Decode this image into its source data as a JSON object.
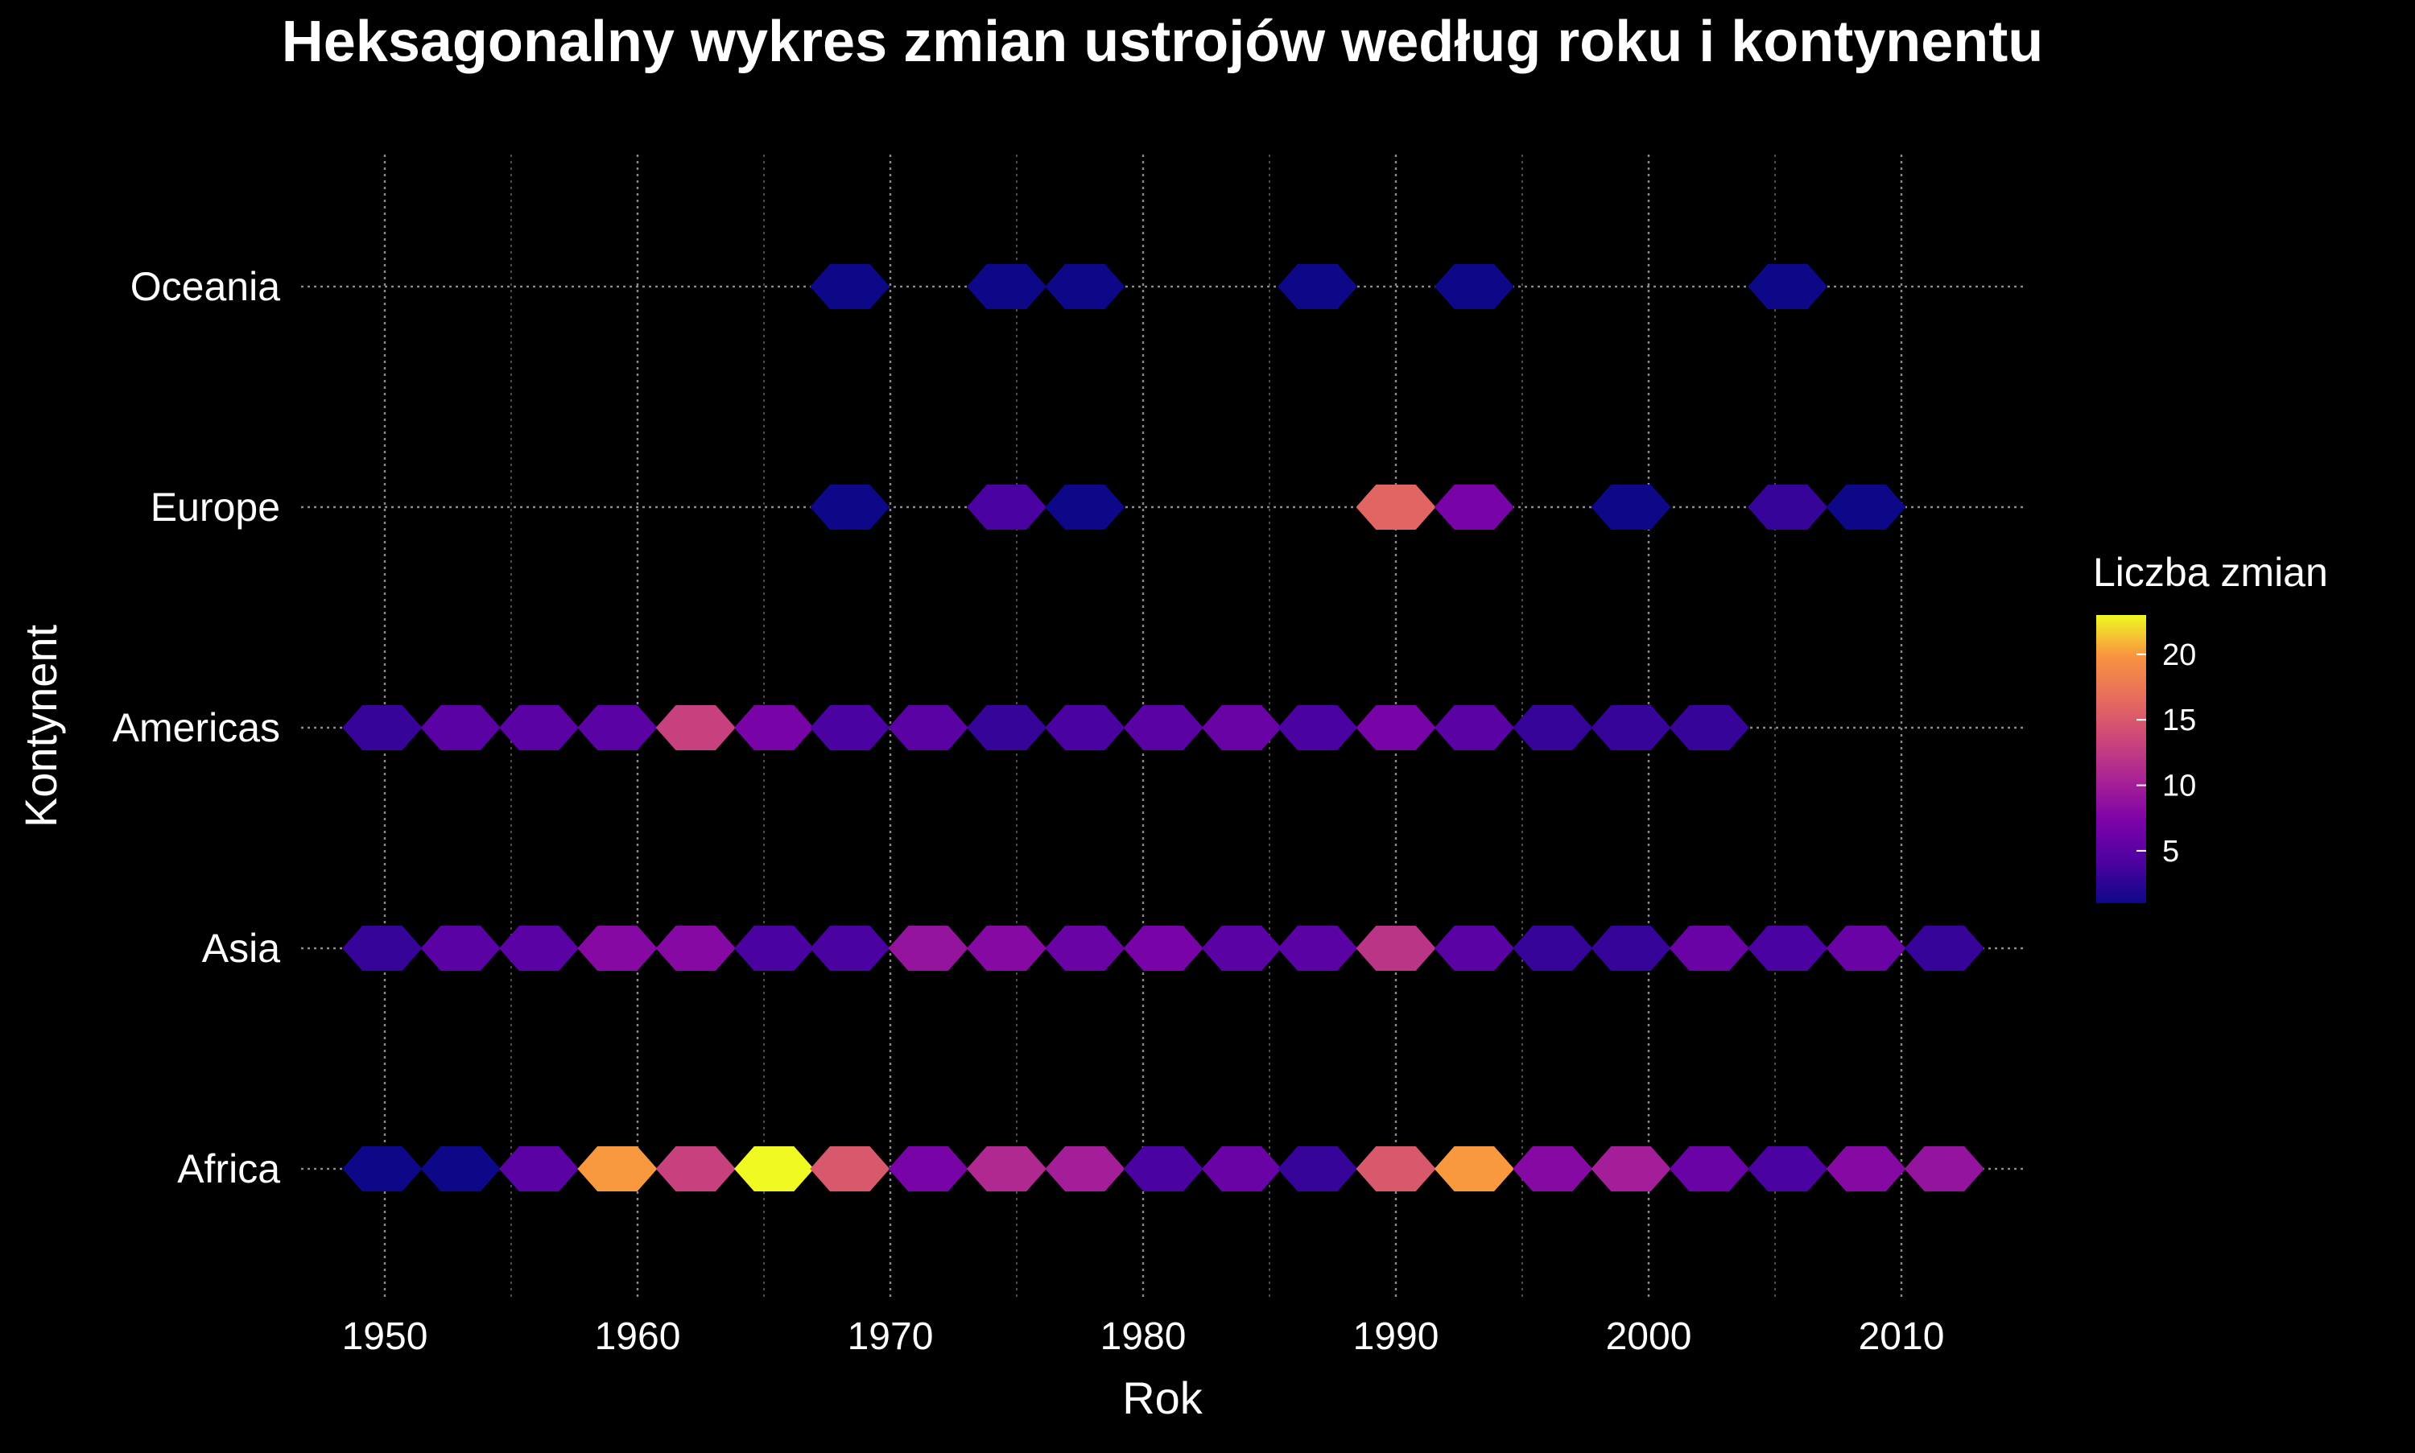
{
  "chart_data": {
    "type": "heatmap",
    "title": "Heksagonalny wykres zmian ustrojów według roku i kontynentu",
    "xlabel": "Rok",
    "ylabel": "Kontynent",
    "xlim": [
      1946,
      2015
    ],
    "categories_y": [
      "Africa",
      "Asia",
      "Americas",
      "Europe",
      "Oceania"
    ],
    "x_ticks": [
      1950,
      1960,
      1970,
      1980,
      1990,
      2000,
      2010
    ],
    "x_tick_labels": [
      "1950",
      "1960",
      "1970",
      "1980",
      "1990",
      "2000",
      "2010"
    ],
    "grid": true,
    "legend": {
      "title": "Liczba zmian",
      "position": "right",
      "min": 1,
      "max": 23,
      "ticks": [
        5,
        10,
        15,
        20
      ],
      "tick_labels": [
        "5",
        "10",
        "15",
        "20"
      ]
    },
    "colorscale": "plasma",
    "series": [
      {
        "name": "Oceania",
        "points": [
          {
            "x": 1968.4,
            "count": 1
          },
          {
            "x": 1974.6,
            "count": 1
          },
          {
            "x": 1977.7,
            "count": 1
          },
          {
            "x": 1986.9,
            "count": 1
          },
          {
            "x": 1993.1,
            "count": 1
          },
          {
            "x": 2005.5,
            "count": 1
          }
        ]
      },
      {
        "name": "Europe",
        "points": [
          {
            "x": 1968.4,
            "count": 1
          },
          {
            "x": 1974.6,
            "count": 4
          },
          {
            "x": 1977.7,
            "count": 1
          },
          {
            "x": 1990.0,
            "count": 16
          },
          {
            "x": 1993.1,
            "count": 7
          },
          {
            "x": 1999.3,
            "count": 1
          },
          {
            "x": 2005.5,
            "count": 3
          },
          {
            "x": 2008.6,
            "count": 1
          }
        ]
      },
      {
        "name": "Americas",
        "points": [
          {
            "x": 1949.9,
            "count": 3
          },
          {
            "x": 1953.0,
            "count": 5
          },
          {
            "x": 1956.1,
            "count": 5
          },
          {
            "x": 1959.2,
            "count": 5
          },
          {
            "x": 1962.3,
            "count": 13
          },
          {
            "x": 1965.4,
            "count": 7
          },
          {
            "x": 1968.4,
            "count": 4
          },
          {
            "x": 1971.5,
            "count": 5
          },
          {
            "x": 1974.6,
            "count": 3
          },
          {
            "x": 1977.7,
            "count": 4
          },
          {
            "x": 1980.8,
            "count": 5
          },
          {
            "x": 1983.9,
            "count": 6
          },
          {
            "x": 1986.9,
            "count": 4
          },
          {
            "x": 1990.0,
            "count": 7
          },
          {
            "x": 1993.1,
            "count": 5
          },
          {
            "x": 1996.2,
            "count": 3
          },
          {
            "x": 1999.3,
            "count": 3
          },
          {
            "x": 2002.4,
            "count": 3
          }
        ]
      },
      {
        "name": "Asia",
        "points": [
          {
            "x": 1949.9,
            "count": 3
          },
          {
            "x": 1953.0,
            "count": 5
          },
          {
            "x": 1956.1,
            "count": 5
          },
          {
            "x": 1959.2,
            "count": 8
          },
          {
            "x": 1962.3,
            "count": 8
          },
          {
            "x": 1965.4,
            "count": 4
          },
          {
            "x": 1968.4,
            "count": 4
          },
          {
            "x": 1971.5,
            "count": 9
          },
          {
            "x": 1974.6,
            "count": 8
          },
          {
            "x": 1977.7,
            "count": 6
          },
          {
            "x": 1980.8,
            "count": 7
          },
          {
            "x": 1983.9,
            "count": 5
          },
          {
            "x": 1986.9,
            "count": 5
          },
          {
            "x": 1990.0,
            "count": 12
          },
          {
            "x": 1993.1,
            "count": 5
          },
          {
            "x": 1996.2,
            "count": 3
          },
          {
            "x": 1999.3,
            "count": 3
          },
          {
            "x": 2002.4,
            "count": 6
          },
          {
            "x": 2005.5,
            "count": 4
          },
          {
            "x": 2008.6,
            "count": 6
          },
          {
            "x": 2011.7,
            "count": 3
          }
        ]
      },
      {
        "name": "Africa",
        "points": [
          {
            "x": 1949.9,
            "count": 1
          },
          {
            "x": 1953.0,
            "count": 1
          },
          {
            "x": 1956.1,
            "count": 5
          },
          {
            "x": 1959.2,
            "count": 20
          },
          {
            "x": 1962.3,
            "count": 13
          },
          {
            "x": 1965.4,
            "count": 23
          },
          {
            "x": 1968.4,
            "count": 15
          },
          {
            "x": 1971.5,
            "count": 7
          },
          {
            "x": 1974.6,
            "count": 11
          },
          {
            "x": 1977.7,
            "count": 10
          },
          {
            "x": 1980.8,
            "count": 4
          },
          {
            "x": 1983.9,
            "count": 6
          },
          {
            "x": 1986.9,
            "count": 3
          },
          {
            "x": 1990.0,
            "count": 15
          },
          {
            "x": 1993.1,
            "count": 20
          },
          {
            "x": 1996.2,
            "count": 8
          },
          {
            "x": 1999.3,
            "count": 10
          },
          {
            "x": 2002.4,
            "count": 6
          },
          {
            "x": 2005.5,
            "count": 4
          },
          {
            "x": 2008.6,
            "count": 8
          },
          {
            "x": 2011.7,
            "count": 9
          }
        ]
      }
    ]
  }
}
